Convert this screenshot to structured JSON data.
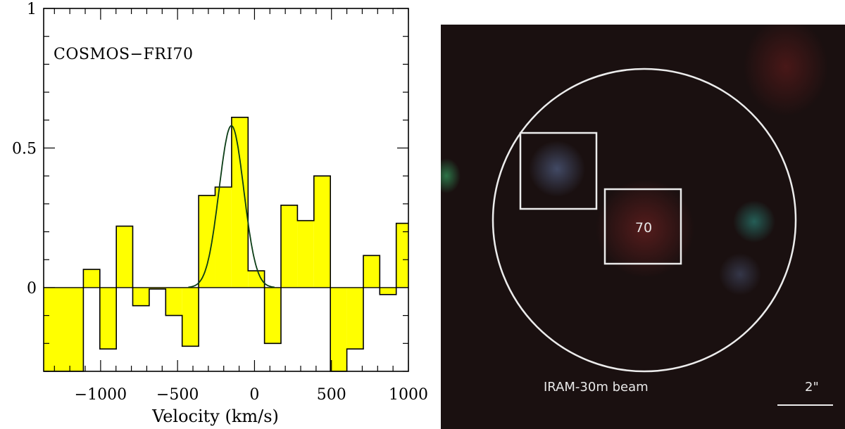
{
  "chart_data": {
    "type": "bar",
    "style": "step-histogram with gaussian fit",
    "title": "COSMOS−FRI70",
    "xlabel": "Velocity (km/s)",
    "ylabel": "",
    "xlim": [
      -1370,
      1000
    ],
    "ylim": [
      -0.3,
      1.0
    ],
    "x_ticks": [
      -1000,
      -500,
      0,
      500,
      1000
    ],
    "x_tick_labels": [
      "−1000",
      "−500",
      "0",
      "500",
      "1000"
    ],
    "y_ticks": [
      0,
      0.5,
      1
    ],
    "y_tick_labels": [
      "0",
      "0.5",
      "1"
    ],
    "bin_width": 107,
    "bins": [
      {
        "x0": -1370,
        "x1": -1112,
        "value": -0.3
      },
      {
        "x0": -1112,
        "x1": -1005,
        "value": 0.065
      },
      {
        "x0": -1005,
        "x1": -898,
        "value": -0.22
      },
      {
        "x0": -898,
        "x1": -791,
        "value": 0.22
      },
      {
        "x0": -791,
        "x1": -684,
        "value": -0.065
      },
      {
        "x0": -684,
        "x1": -577,
        "value": -0.005
      },
      {
        "x0": -577,
        "x1": -470,
        "value": -0.1
      },
      {
        "x0": -470,
        "x1": -363,
        "value": -0.21
      },
      {
        "x0": -363,
        "x1": -256,
        "value": 0.33
      },
      {
        "x0": -256,
        "x1": -149,
        "value": 0.36
      },
      {
        "x0": -149,
        "x1": -42,
        "value": 0.61
      },
      {
        "x0": -42,
        "x1": 65,
        "value": 0.06
      },
      {
        "x0": 65,
        "x1": 172,
        "value": -0.2
      },
      {
        "x0": 172,
        "x1": 279,
        "value": 0.295
      },
      {
        "x0": 279,
        "x1": 386,
        "value": 0.24
      },
      {
        "x0": 386,
        "x1": 493,
        "value": 0.4
      },
      {
        "x0": 493,
        "x1": 600,
        "value": -0.3
      },
      {
        "x0": 600,
        "x1": 707,
        "value": -0.22
      },
      {
        "x0": 707,
        "x1": 814,
        "value": 0.115
      },
      {
        "x0": 814,
        "x1": 921,
        "value": -0.025
      },
      {
        "x0": 921,
        "x1": 1000,
        "value": 0.23
      }
    ],
    "gaussian_fit": {
      "amplitude": 0.58,
      "center": -150,
      "sigma": 80
    },
    "colors": {
      "fill": "#ffff00",
      "fit": "#0b3d16",
      "outline": "#000000"
    }
  },
  "image_panel": {
    "beam_label": "IRAM-30m beam",
    "source_label": "70",
    "scale_label": "2\""
  }
}
